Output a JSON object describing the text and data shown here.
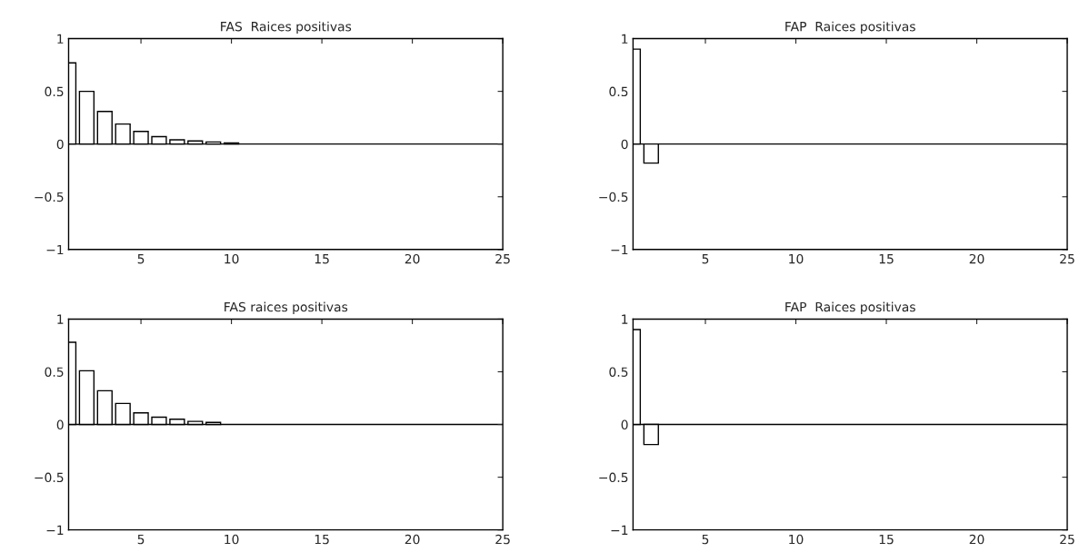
{
  "chart_data": [
    {
      "type": "bar",
      "title": "FAS  Raices positivas",
      "x": [
        1,
        2,
        3,
        4,
        5,
        6,
        7,
        8,
        9,
        10
      ],
      "values": [
        0.77,
        0.5,
        0.31,
        0.19,
        0.12,
        0.07,
        0.04,
        0.03,
        0.02,
        0.01
      ],
      "color": "#ffffff",
      "xlim": [
        1,
        25
      ],
      "xticks": [
        5,
        10,
        15,
        20,
        25
      ],
      "ylim": [
        -1,
        1
      ],
      "yticks": [
        -1,
        -0.5,
        0,
        0.5,
        1
      ],
      "ref_lines": [
        {
          "axis": "y",
          "value": 0,
          "color": "#000000"
        }
      ],
      "grid": false
    },
    {
      "type": "bar",
      "title": "FAP  Raices positivas",
      "x": [
        1,
        2
      ],
      "values": [
        0.9,
        -0.18
      ],
      "color": "#ffffff",
      "xlim": [
        1,
        25
      ],
      "xticks": [
        5,
        10,
        15,
        20,
        25
      ],
      "ylim": [
        -1,
        1
      ],
      "yticks": [
        -1,
        -0.5,
        0,
        0.5,
        1
      ],
      "ref_lines": [
        {
          "axis": "y",
          "value": 0,
          "color": "#000000"
        }
      ],
      "grid": false
    },
    {
      "type": "bar",
      "title": "FAS raices positivas",
      "x": [
        1,
        2,
        3,
        4,
        5,
        6,
        7,
        8,
        9
      ],
      "values": [
        0.78,
        0.51,
        0.32,
        0.2,
        0.11,
        0.07,
        0.05,
        0.03,
        0.02
      ],
      "color": "#ffffff",
      "xlim": [
        1,
        25
      ],
      "xticks": [
        5,
        10,
        15,
        20,
        25
      ],
      "ylim": [
        -1,
        1
      ],
      "yticks": [
        -1,
        -0.5,
        0,
        0.5,
        1
      ],
      "ref_lines": [
        {
          "axis": "y",
          "value": 0,
          "color": "#000000"
        }
      ],
      "grid": false
    },
    {
      "type": "bar",
      "title": "FAP  Raices positivas",
      "x": [
        1,
        2
      ],
      "values": [
        0.9,
        -0.19
      ],
      "color": "#ffffff",
      "xlim": [
        1,
        25
      ],
      "xticks": [
        5,
        10,
        15,
        20,
        25
      ],
      "ylim": [
        -1,
        1
      ],
      "yticks": [
        -1,
        -0.5,
        0,
        0.5,
        1
      ],
      "ref_lines": [
        {
          "axis": "y",
          "value": 0,
          "color": "#000000"
        }
      ],
      "grid": false
    }
  ]
}
